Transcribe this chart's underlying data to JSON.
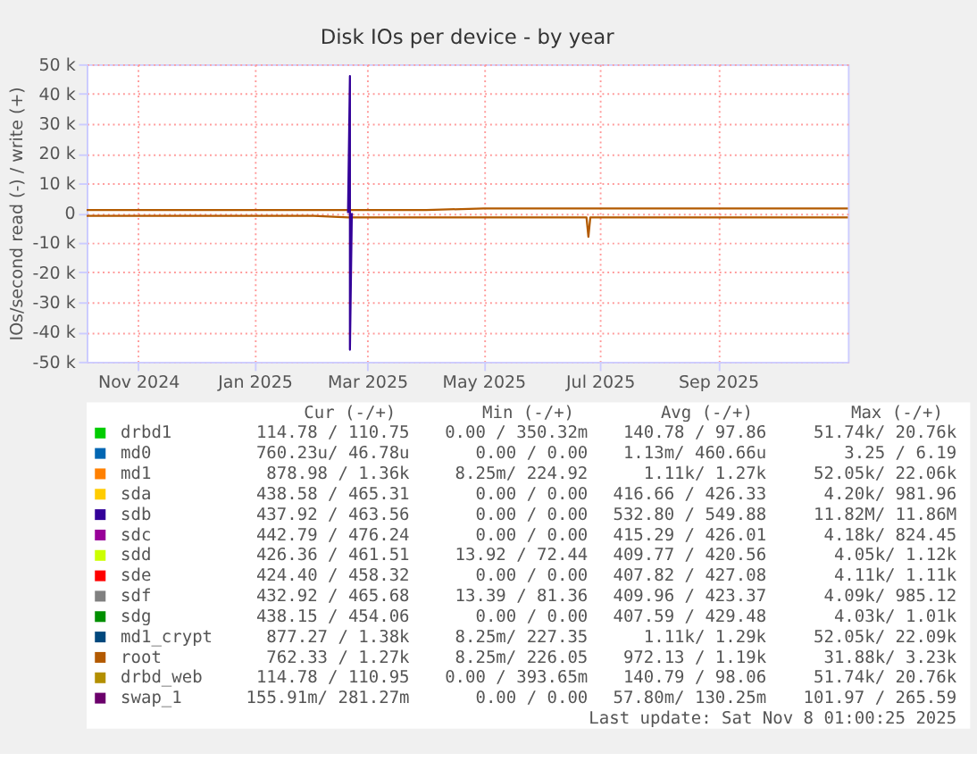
{
  "chart_data": {
    "type": "line",
    "title": "Disk IOs per device - by year",
    "ylabel": "IOs/second read (-) / write (+)",
    "x": [
      "2024-10-05",
      "2024-11-01",
      "2024-12-01",
      "2025-01-01",
      "2025-02-01",
      "2025-02-19",
      "2025-02-20",
      "2025-02-21",
      "2025-03-01",
      "2025-04-01",
      "2025-05-01",
      "2025-06-01",
      "2025-06-24",
      "2025-06-25",
      "2025-06-26",
      "2025-07-01",
      "2025-08-01",
      "2025-09-01",
      "2025-10-01",
      "2025-11-08"
    ],
    "xlim": [
      "2024-10-05",
      "2025-11-08"
    ],
    "xticks": [
      {
        "value": "2024-11-01",
        "label": "Nov 2024"
      },
      {
        "value": "2025-01-01",
        "label": "Jan 2025"
      },
      {
        "value": "2025-03-01",
        "label": "Mar 2025"
      },
      {
        "value": "2025-05-01",
        "label": "May 2025"
      },
      {
        "value": "2025-07-01",
        "label": "Jul 2025"
      },
      {
        "value": "2025-09-01",
        "label": "Sep 2025"
      }
    ],
    "ylim": [
      -50000,
      50000
    ],
    "yticks": [
      {
        "value": -50000,
        "label": "-50 k"
      },
      {
        "value": -40000,
        "label": "-40 k"
      },
      {
        "value": -30000,
        "label": "-30 k"
      },
      {
        "value": -20000,
        "label": "-20 k"
      },
      {
        "value": -10000,
        "label": "-10 k"
      },
      {
        "value": 0,
        "label": "0"
      },
      {
        "value": 10000,
        "label": "10 k"
      },
      {
        "value": 20000,
        "label": "20 k"
      },
      {
        "value": 30000,
        "label": "30 k"
      },
      {
        "value": 40000,
        "label": "40 k"
      },
      {
        "value": 50000,
        "label": "50 k"
      }
    ],
    "grid": true,
    "legend": "bottom",
    "line_style": "solid",
    "marker": "none",
    "series": [
      {
        "name": "drbd1",
        "color": "#00cc00",
        "values": [
          null,
          null,
          null,
          null,
          null,
          null,
          null,
          null,
          null,
          null,
          null,
          null,
          null,
          null,
          null,
          null,
          null,
          null,
          null,
          null
        ]
      },
      {
        "name": "md0",
        "color": "#0066b3",
        "values": [
          null,
          null,
          null,
          null,
          null,
          null,
          null,
          null,
          null,
          null,
          null,
          null,
          null,
          null,
          null,
          null,
          null,
          null,
          null,
          null
        ]
      },
      {
        "name": "md1",
        "color": "#ff8000",
        "values": [
          null,
          null,
          null,
          null,
          null,
          null,
          null,
          null,
          null,
          null,
          null,
          null,
          null,
          null,
          null,
          null,
          null,
          null,
          null,
          null
        ]
      },
      {
        "name": "sda",
        "color": "#ffcc00",
        "values": [
          null,
          null,
          null,
          null,
          null,
          null,
          null,
          null,
          null,
          null,
          null,
          null,
          null,
          null,
          null,
          null,
          null,
          null,
          null,
          null
        ]
      },
      {
        "name": "sdb",
        "color": "#330099",
        "x": [
          "2025-02-19",
          "2025-02-20",
          "2025-02-20",
          "2025-02-21"
        ],
        "values": [
          0,
          46000,
          -46000,
          0
        ]
      },
      {
        "name": "sdc",
        "color": "#990099",
        "values": [
          null,
          null,
          null,
          null,
          null,
          null,
          null,
          null,
          null,
          null,
          null,
          null,
          null,
          null,
          null,
          null,
          null,
          null,
          null,
          null
        ]
      },
      {
        "name": "sdd",
        "color": "#ccff00",
        "values": [
          null,
          null,
          null,
          null,
          null,
          null,
          null,
          null,
          null,
          null,
          null,
          null,
          null,
          null,
          null,
          null,
          null,
          null,
          null,
          null
        ]
      },
      {
        "name": "sde",
        "color": "#ff0000",
        "values": [
          null,
          null,
          null,
          null,
          null,
          null,
          null,
          null,
          null,
          null,
          null,
          null,
          null,
          null,
          null,
          null,
          null,
          null,
          null,
          null
        ]
      },
      {
        "name": "sdf",
        "color": "#808080",
        "values": [
          null,
          null,
          null,
          null,
          null,
          null,
          null,
          null,
          null,
          null,
          null,
          null,
          null,
          null,
          null,
          null,
          null,
          null,
          null,
          null
        ]
      },
      {
        "name": "sdg",
        "color": "#008f00",
        "values": [
          null,
          null,
          null,
          null,
          null,
          null,
          null,
          null,
          null,
          null,
          null,
          null,
          null,
          null,
          null,
          null,
          null,
          null,
          null,
          null
        ]
      },
      {
        "name": "md1_crypt",
        "color": "#00487d",
        "values": [
          null,
          null,
          null,
          null,
          null,
          null,
          null,
          null,
          null,
          null,
          null,
          null,
          null,
          null,
          null,
          null,
          null,
          null,
          null,
          null
        ]
      },
      {
        "name": "root",
        "color": "#b35a00",
        "values": [
          1000,
          1000,
          1000,
          1000,
          1000,
          1000,
          1000,
          1000,
          1000,
          1000,
          1500,
          1500,
          1500,
          1500,
          1500,
          1500,
          1500,
          1500,
          1500,
          1500
        ]
      },
      {
        "name": "drbd_web",
        "color": "#b38f00",
        "values": [
          null,
          null,
          null,
          null,
          null,
          null,
          null,
          null,
          null,
          null,
          null,
          null,
          null,
          null,
          null,
          null,
          null,
          null,
          null,
          null
        ]
      },
      {
        "name": "swap_1",
        "color": "#6b006b",
        "values": [
          null,
          null,
          null,
          null,
          null,
          null,
          null,
          null,
          null,
          null,
          null,
          null,
          null,
          null,
          null,
          null,
          null,
          null,
          null,
          null
        ]
      },
      {
        "color": "#b35a00",
        "values": [
          -1000,
          -1000,
          -1000,
          -1000,
          -1000,
          -1500,
          -1500,
          -1500,
          -1500,
          -1500,
          -1500,
          -1500,
          -1500,
          -8000,
          -1500,
          -1500,
          -1500,
          -1500,
          -1500,
          -1500
        ]
      }
    ],
    "annotations": [
      "Cur (-/+)",
      "Min (-/+)",
      "Avg (-/+)",
      "Max (-/+)",
      "114.78 / 110.75",
      "0.00 / 350.32m",
      "140.78 / 97.86",
      "51.74k/ 20.76k",
      "760.23u/ 46.78u",
      "0.00 / 0.00",
      "1.13m/ 460.66u",
      "3.25 / 6.19",
      "878.98 / 1.36k",
      "8.25m/ 224.92",
      "1.11k/ 1.27k",
      "52.05k/ 22.06k",
      "438.58 / 465.31",
      "0.00 / 0.00",
      "416.66 / 426.33",
      "4.20k/ 981.96",
      "437.92 / 463.56",
      "0.00 / 0.00",
      "532.80 / 549.88",
      "11.82M/ 11.86M",
      "442.79 / 476.24",
      "0.00 / 0.00",
      "415.29 / 426.01",
      "4.18k/ 824.45",
      "426.36 / 461.51",
      "13.92 / 72.44",
      "409.77 / 420.56",
      "4.05k/ 1.12k",
      "424.40 / 458.32",
      "0.00 / 0.00",
      "407.82 / 427.08",
      "4.11k/ 1.11k",
      "432.92 / 465.68",
      "13.39 / 81.36",
      "409.96 / 423.37",
      "4.09k/ 985.12",
      "438.15 / 454.06",
      "0.00 / 0.00",
      "407.59 / 429.48",
      "4.03k/ 1.01k",
      "877.27 / 1.38k",
      "8.25m/ 227.35",
      "1.11k/ 1.29k",
      "52.05k/ 22.09k",
      "762.33 / 1.27k",
      "8.25m/ 226.05",
      "972.13 / 1.19k",
      "31.88k/ 3.23k",
      "114.78 / 110.95",
      "0.00 / 393.65m",
      "140.79 / 98.06",
      "51.74k/ 20.76k",
      "155.91m/ 281.27m",
      "0.00 / 0.00",
      "57.80m/ 130.25m",
      "101.97 / 265.59",
      "Last update: Sat Nov  8 01:00:25 2025"
    ]
  }
}
